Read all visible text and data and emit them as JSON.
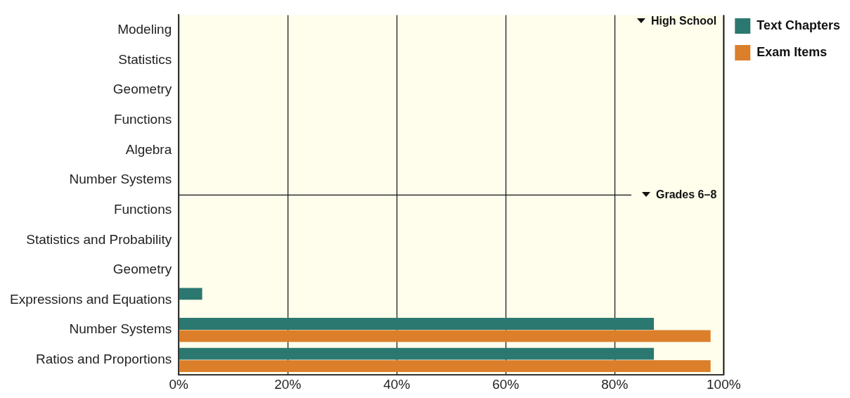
{
  "chart_data": {
    "type": "bar",
    "orientation": "horizontal",
    "categories": [
      "Modeling",
      "Statistics",
      "Geometry",
      "Functions",
      "Algebra",
      "Number Systems",
      "Functions",
      "Statistics and Probability",
      "Geometry",
      "Expressions and Equations",
      "Number Systems",
      "Ratios and Proportions"
    ],
    "series": [
      {
        "name": "Text Chapters",
        "color": "#2b7870",
        "values": [
          0,
          0,
          0,
          0,
          0,
          0,
          0,
          0,
          0,
          4.3,
          87.2,
          87.2
        ]
      },
      {
        "name": "Exam Items",
        "color": "#db7f2b",
        "values": [
          0,
          0,
          0,
          0,
          0,
          0,
          0,
          0,
          0,
          0,
          97.6,
          97.6
        ]
      }
    ],
    "xlim": [
      0,
      100
    ],
    "xticks": [
      {
        "value": 0,
        "label": "0%"
      },
      {
        "value": 20,
        "label": "20%"
      },
      {
        "value": 40,
        "label": "40%"
      },
      {
        "value": 60,
        "label": "60%"
      },
      {
        "value": 80,
        "label": "80%"
      },
      {
        "value": 100,
        "label": "100%"
      }
    ],
    "grid": "x",
    "legend": "top right",
    "annotations": [
      "High School",
      "Grades 6–8"
    ]
  }
}
